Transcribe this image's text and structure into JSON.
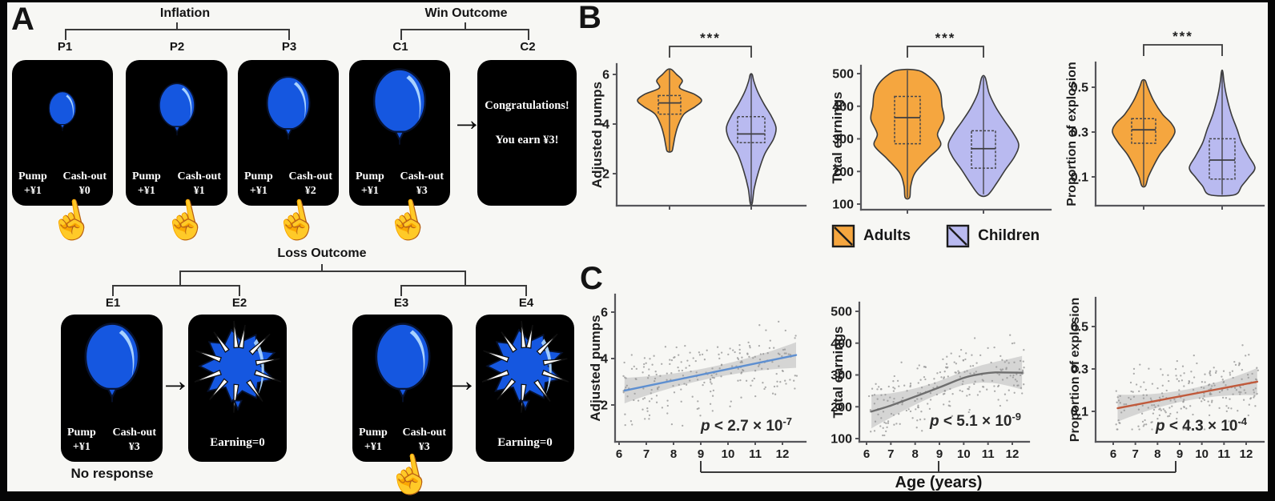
{
  "panelA": {
    "label": "A",
    "brackets": {
      "inflation": "Inflation",
      "win": "Win Outcome",
      "loss": "Loss Outcome"
    },
    "no_response": "No response",
    "top_cards": [
      {
        "id": "P1",
        "pump_label": "Pump",
        "pump_value": "+¥1",
        "cash_label": "Cash-out",
        "cash_value": "¥0"
      },
      {
        "id": "P2",
        "pump_label": "Pump",
        "pump_value": "+¥1",
        "cash_label": "Cash-out",
        "cash_value": "¥1"
      },
      {
        "id": "P3",
        "pump_label": "Pump",
        "pump_value": "+¥1",
        "cash_label": "Cash-out",
        "cash_value": "¥2"
      },
      {
        "id": "C1",
        "pump_label": "Pump",
        "pump_value": "+¥1",
        "cash_label": "Cash-out",
        "cash_value": "¥3"
      },
      {
        "id": "C2",
        "message_line1": "Congratulations!",
        "message_line2": "You earn ¥3!"
      }
    ],
    "bottom_cards": [
      {
        "id": "E1",
        "pump_label": "Pump",
        "pump_value": "+¥1",
        "cash_label": "Cash-out",
        "cash_value": "¥3"
      },
      {
        "id": "E2",
        "earning": "Earning=0"
      },
      {
        "id": "E3",
        "pump_label": "Pump",
        "pump_value": "+¥1",
        "cash_label": "Cash-out",
        "cash_value": "¥3"
      },
      {
        "id": "E4",
        "earning": "Earning=0"
      }
    ]
  },
  "panelB": {
    "label": "B"
  },
  "panelC": {
    "label": "C",
    "age_label": "Age (years)"
  },
  "legend": {
    "adults": "Adults",
    "children": "Children"
  },
  "colors": {
    "adults": "#F5A63F",
    "children": "#B9BAF0",
    "balloon": "#1557E0",
    "balloon_highlight": "#A8D2FF",
    "balloon_outline": "#07122e",
    "line_blue": "#5E8FD0",
    "line_gray": "#6E6E6E",
    "line_red": "#C05A3C",
    "axis": "#56565a",
    "card_bg": "#000000"
  },
  "chart_data": [
    {
      "type": "violin",
      "ylabel": "Adjusted pumps",
      "yticks": [
        2,
        4,
        6
      ],
      "ylim": [
        0.6,
        6.6
      ],
      "significance": "***",
      "legend_position": "below",
      "groups": [
        {
          "name": "Adults",
          "color_key": "adults",
          "stats": {
            "min": 2.9,
            "q1": 4.4,
            "median": 4.85,
            "q3": 5.15,
            "max": 6.2
          },
          "profile": [
            [
              2.9,
              0.07
            ],
            [
              3.15,
              0.12
            ],
            [
              3.5,
              0.17
            ],
            [
              3.95,
              0.27
            ],
            [
              4.4,
              0.45
            ],
            [
              4.7,
              0.8
            ],
            [
              4.95,
              1.0
            ],
            [
              5.2,
              0.78
            ],
            [
              5.45,
              0.32
            ],
            [
              5.75,
              0.4
            ],
            [
              6.0,
              0.22
            ],
            [
              6.2,
              0.06
            ]
          ]
        },
        {
          "name": "Children",
          "color_key": "children",
          "stats": {
            "min": 0.8,
            "q1": 3.25,
            "median": 3.6,
            "q3": 4.3,
            "max": 6.0
          },
          "profile": [
            [
              0.8,
              0.04
            ],
            [
              1.4,
              0.12
            ],
            [
              2.1,
              0.3
            ],
            [
              2.8,
              0.55
            ],
            [
              3.4,
              0.9
            ],
            [
              3.85,
              1.0
            ],
            [
              4.3,
              0.82
            ],
            [
              4.8,
              0.52
            ],
            [
              5.3,
              0.26
            ],
            [
              5.75,
              0.1
            ],
            [
              6.0,
              0.04
            ]
          ]
        }
      ]
    },
    {
      "type": "violin",
      "ylabel": "Total earnings",
      "yticks": [
        100,
        200,
        300,
        400,
        500
      ],
      "ylim": [
        90,
        520
      ],
      "significance": "***",
      "groups": [
        {
          "name": "Adults",
          "color_key": "adults",
          "stats": {
            "min": 120,
            "q1": 285,
            "median": 365,
            "q3": 430,
            "max": 510
          },
          "profile": [
            [
              120,
              0.06
            ],
            [
              155,
              0.09
            ],
            [
              195,
              0.2
            ],
            [
              240,
              0.55
            ],
            [
              280,
              0.88
            ],
            [
              315,
              0.8
            ],
            [
              360,
              0.97
            ],
            [
              400,
              0.92
            ],
            [
              440,
              0.88
            ],
            [
              475,
              0.72
            ],
            [
              505,
              0.4
            ],
            [
              512,
              0.15
            ]
          ]
        },
        {
          "name": "Children",
          "color_key": "children",
          "stats": {
            "min": 130,
            "q1": 210,
            "median": 270,
            "q3": 325,
            "max": 490
          },
          "profile": [
            [
              128,
              0.12
            ],
            [
              165,
              0.38
            ],
            [
              205,
              0.62
            ],
            [
              245,
              0.88
            ],
            [
              282,
              1.0
            ],
            [
              318,
              0.84
            ],
            [
              355,
              0.6
            ],
            [
              395,
              0.36
            ],
            [
              440,
              0.16
            ],
            [
              488,
              0.05
            ]
          ]
        }
      ]
    },
    {
      "type": "violin",
      "ylabel": "Proportion of explosion",
      "yticks": [
        0.1,
        0.3,
        0.5
      ],
      "ylim": [
        0.0,
        0.6
      ],
      "significance": "***",
      "groups": [
        {
          "name": "Adults",
          "color_key": "adults",
          "stats": {
            "min": 0.06,
            "q1": 0.25,
            "median": 0.31,
            "q3": 0.36,
            "max": 0.53
          },
          "profile": [
            [
              0.06,
              0.06
            ],
            [
              0.1,
              0.15
            ],
            [
              0.15,
              0.32
            ],
            [
              0.2,
              0.52
            ],
            [
              0.25,
              0.8
            ],
            [
              0.3,
              1.0
            ],
            [
              0.34,
              0.88
            ],
            [
              0.38,
              0.6
            ],
            [
              0.44,
              0.32
            ],
            [
              0.5,
              0.13
            ],
            [
              0.53,
              0.05
            ]
          ]
        },
        {
          "name": "Children",
          "color_key": "children",
          "stats": {
            "min": 0.02,
            "q1": 0.09,
            "median": 0.175,
            "q3": 0.27,
            "max": 0.57
          },
          "profile": [
            [
              0.02,
              0.38
            ],
            [
              0.06,
              0.6
            ],
            [
              0.1,
              0.82
            ],
            [
              0.14,
              1.0
            ],
            [
              0.19,
              0.82
            ],
            [
              0.25,
              0.6
            ],
            [
              0.31,
              0.46
            ],
            [
              0.38,
              0.28
            ],
            [
              0.45,
              0.15
            ],
            [
              0.52,
              0.06
            ],
            [
              0.57,
              0.02
            ]
          ]
        }
      ]
    },
    {
      "type": "scatter",
      "ylabel": "Adjusted pumps",
      "xlabel": "Age (years)",
      "xticks": [
        6,
        7,
        8,
        9,
        10,
        11,
        12
      ],
      "yticks": [
        2,
        4,
        6
      ],
      "xlim": [
        5.8,
        12.7
      ],
      "ylim": [
        0.6,
        6.5
      ],
      "p_pre": "p",
      "p_mid": " < 2.7 × 10",
      "p_sup": "-7",
      "line_color_key": "line_blue",
      "trend": [
        [
          6.2,
          2.62
        ],
        [
          12.5,
          4.15
        ]
      ],
      "points": {
        "n": 235,
        "seed": 11,
        "noise_sd": 1.05
      }
    },
    {
      "type": "scatter",
      "ylabel": "Total earnings",
      "xlabel": "Age (years)",
      "xticks": [
        6,
        7,
        8,
        9,
        10,
        11,
        12
      ],
      "yticks": [
        100,
        200,
        300,
        400,
        500
      ],
      "xlim": [
        5.8,
        12.7
      ],
      "ylim": [
        90,
        520
      ],
      "p_pre": "p",
      "p_mid": " < 5.1 × 10",
      "p_sup": "-9",
      "line_color_key": "line_gray",
      "trend": [
        [
          6.2,
          185
        ],
        [
          7.0,
          204
        ],
        [
          8.0,
          232
        ],
        [
          9.0,
          261
        ],
        [
          10.0,
          291
        ],
        [
          10.7,
          303
        ],
        [
          11.3,
          308
        ],
        [
          12.4,
          307
        ]
      ],
      "points": {
        "n": 235,
        "seed": 22,
        "noise_sd": 72
      }
    },
    {
      "type": "scatter",
      "ylabel": "Proportion of explosion",
      "xlabel": "Age (years)",
      "xticks": [
        6,
        7,
        8,
        9,
        10,
        11,
        12
      ],
      "yticks": [
        0.1,
        0.3,
        0.5
      ],
      "xlim": [
        5.8,
        12.7
      ],
      "ylim": [
        0.0,
        0.6
      ],
      "p_pre": "p",
      "p_mid": " < 4.3 × 10",
      "p_sup": "-4",
      "line_color_key": "line_red",
      "trend": [
        [
          6.2,
          0.115
        ],
        [
          12.5,
          0.24
        ]
      ],
      "points": {
        "n": 235,
        "seed": 33,
        "noise_sd": 0.105
      }
    }
  ]
}
